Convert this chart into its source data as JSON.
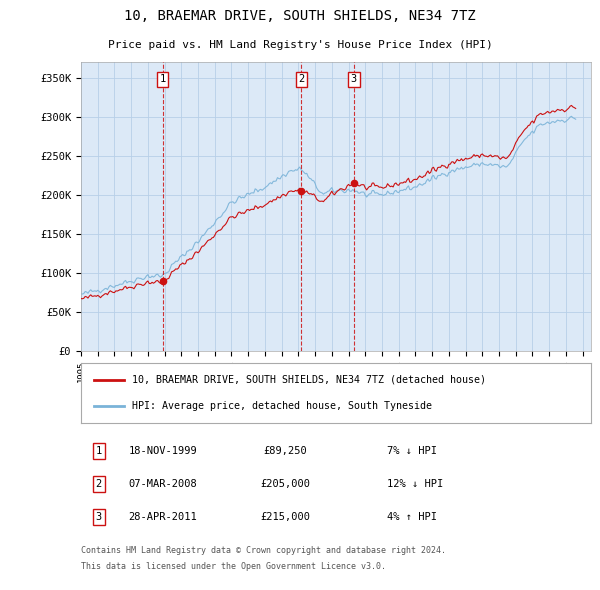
{
  "title": "10, BRAEMAR DRIVE, SOUTH SHIELDS, NE34 7TZ",
  "subtitle": "Price paid vs. HM Land Registry's House Price Index (HPI)",
  "ylim": [
    0,
    370000
  ],
  "xlim_start": 1995.0,
  "xlim_end": 2025.5,
  "plot_bg": "#dce9f7",
  "grid_color": "#ffffff",
  "legend_label_red": "10, BRAEMAR DRIVE, SOUTH SHIELDS, NE34 7TZ (detached house)",
  "legend_label_blue": "HPI: Average price, detached house, South Tyneside",
  "transactions": [
    {
      "label": "1",
      "date": "18-NOV-1999",
      "price": 89250,
      "pct": "7%",
      "direction": "↓",
      "x": 1999.88
    },
    {
      "label": "2",
      "date": "07-MAR-2008",
      "price": 205000,
      "pct": "12%",
      "direction": "↓",
      "x": 2008.18
    },
    {
      "label": "3",
      "date": "28-APR-2011",
      "price": 215000,
      "pct": "4%",
      "direction": "↑",
      "x": 2011.32
    }
  ],
  "footer1": "Contains HM Land Registry data © Crown copyright and database right 2024.",
  "footer2": "This data is licensed under the Open Government Licence v3.0.",
  "xticks": [
    1995,
    1996,
    1997,
    1998,
    1999,
    2000,
    2001,
    2002,
    2003,
    2004,
    2005,
    2006,
    2007,
    2008,
    2009,
    2010,
    2011,
    2012,
    2013,
    2014,
    2015,
    2016,
    2017,
    2018,
    2019,
    2020,
    2021,
    2022,
    2023,
    2024,
    2025
  ]
}
